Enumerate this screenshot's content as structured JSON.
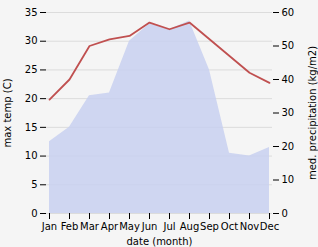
{
  "chart_data": {
    "type": "line",
    "xlabel": "date (month)",
    "ylabel": "max temp (C)",
    "y2label": "med. precipitation (kg/m2)",
    "categories": [
      "Jan",
      "Feb",
      "Mar",
      "Apr",
      "May",
      "Jun",
      "Jul",
      "Aug",
      "Sep",
      "Oct",
      "Nov",
      "Dec"
    ],
    "series": [
      {
        "type": "area",
        "color": "#c8d0f0",
        "values": [
          12.5,
          15.0,
          20.5,
          21.0,
          30.0,
          33.0,
          32.0,
          33.5,
          25.0,
          10.5,
          10.0,
          11.5
        ]
      },
      {
        "type": "line",
        "color": "#c05050",
        "axis": "y2",
        "values": [
          34,
          40,
          50,
          52,
          53,
          57,
          55,
          57,
          52,
          47,
          42,
          39
        ]
      }
    ],
    "ylim": [
      0,
      35
    ],
    "yticks": [
      0,
      5,
      10,
      15,
      20,
      25,
      30,
      35
    ],
    "y2lim": [
      0,
      60
    ],
    "y2ticks": [
      0,
      10,
      20,
      30,
      40,
      50,
      60
    ],
    "grid": true
  }
}
